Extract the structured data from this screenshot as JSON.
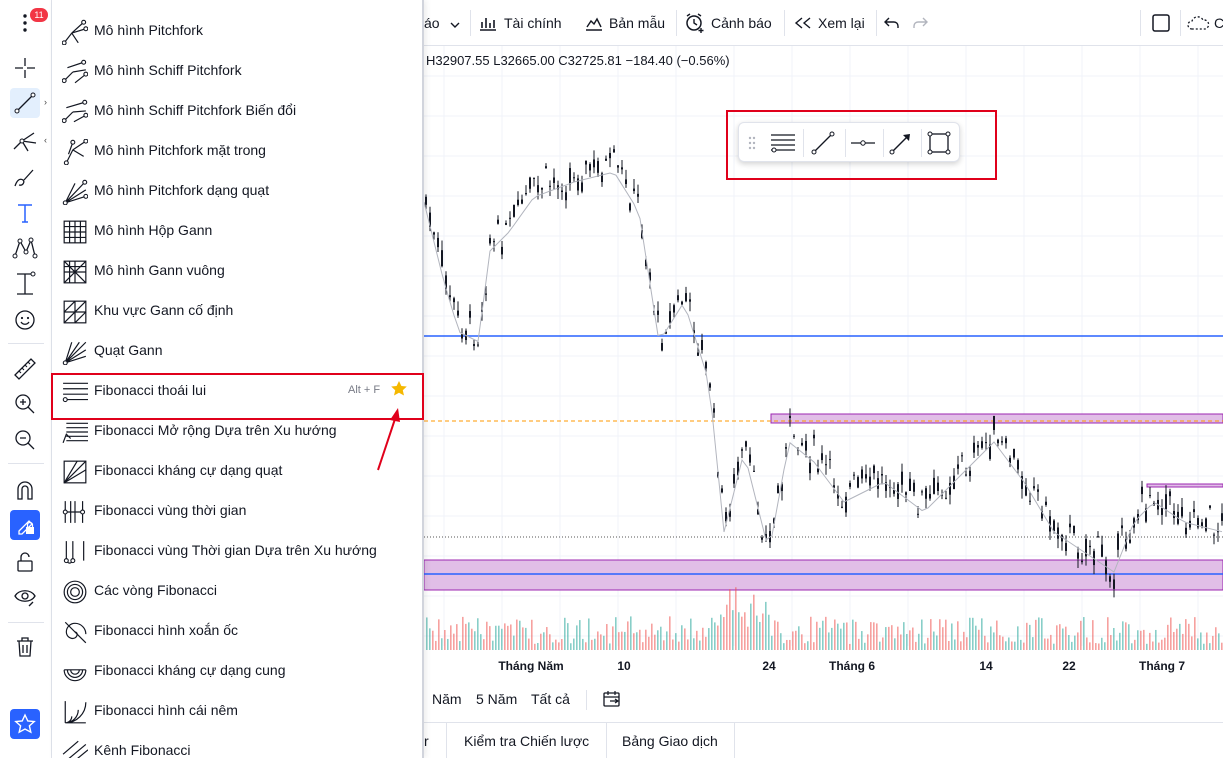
{
  "left_toolbar": {
    "notification_count": "11",
    "tools": [
      {
        "icon": "menu-dots-icon"
      },
      {
        "icon": "crosshair-icon"
      },
      {
        "icon": "trend-line-icon"
      },
      {
        "icon": "pitchfork-icon"
      },
      {
        "icon": "brush-icon"
      },
      {
        "icon": "text-icon"
      },
      {
        "icon": "pattern-icon"
      },
      {
        "icon": "forecast-icon"
      },
      {
        "icon": "emoji-icon"
      },
      {
        "icon": "ruler-icon"
      },
      {
        "icon": "zoom-in-icon"
      },
      {
        "icon": "zoom-out-icon"
      },
      {
        "icon": "magnet-icon"
      },
      {
        "icon": "lock-drawing-icon"
      },
      {
        "icon": "unlock-icon"
      },
      {
        "icon": "eye-icon"
      },
      {
        "icon": "trash-icon"
      },
      {
        "icon": "favorite-star-icon"
      }
    ]
  },
  "menu": {
    "items": [
      {
        "label": "Mô hình Pitchfork",
        "icon": "pitchfork-icon"
      },
      {
        "label": "Mô hình Schiff Pitchfork",
        "icon": "schiff-pitchfork-icon"
      },
      {
        "label": "Mô hình Schiff Pitchfork Biến đổi",
        "icon": "modified-schiff-pitchfork-icon"
      },
      {
        "label": "Mô hình Pitchfork mặt trong",
        "icon": "inside-pitchfork-icon"
      },
      {
        "label": "Mô hình Pitchfork dạng quạt",
        "icon": "pitchfan-icon"
      },
      {
        "label": "Mô hình Hộp Gann",
        "icon": "gann-box-icon"
      },
      {
        "label": "Mô hình Gann vuông",
        "icon": "gann-square-icon"
      },
      {
        "label": "Khu vực Gann cố định",
        "icon": "gann-square-fixed-icon"
      },
      {
        "label": "Quạt Gann",
        "icon": "gann-fan-icon"
      },
      {
        "label": "Fibonacci thoái lui",
        "icon": "fib-retracement-icon",
        "shortcut": "Alt + F",
        "favorite": true
      },
      {
        "label": "Fibonacci Mở rộng Dựa trên Xu hướng",
        "icon": "fib-extension-icon"
      },
      {
        "label": "Fibonacci kháng cự dạng quạt",
        "icon": "fib-speed-fan-icon"
      },
      {
        "label": "Fibonacci vùng thời gian",
        "icon": "fib-time-zone-icon"
      },
      {
        "label": "Fibonacci vùng Thời gian Dựa trên Xu hướng",
        "icon": "fib-trend-time-icon"
      },
      {
        "label": "Các vòng Fibonacci",
        "icon": "fib-circles-icon"
      },
      {
        "label": "Fibonacci hình xoắn ốc",
        "icon": "fib-spiral-icon"
      },
      {
        "label": "Fibonacci kháng cự dạng cung",
        "icon": "fib-arcs-icon"
      },
      {
        "label": "Fibonacci hình cái nêm",
        "icon": "fib-wedge-icon"
      },
      {
        "label": "Kênh Fibonacci",
        "icon": "fib-channel-icon"
      }
    ]
  },
  "top_toolbar": {
    "partial_label": "áo",
    "financials": "Tài chính",
    "templates": "Bản mẫu",
    "alert": "Cảnh báo",
    "replay": "Xem lại",
    "partial_right": "C"
  },
  "ohlc": "H32907.55 L32665.00 C32725.81 −184.40 (−0.56%)",
  "chart": {
    "x_axis_labels": [
      "Tháng Năm",
      "10",
      "24",
      "Tháng 6",
      "14",
      "22",
      "Tháng 7"
    ],
    "colors": {
      "candle": "#131722",
      "hline": "#2962ff",
      "zone_fill": "#e1bee7",
      "zone_border": "#9c27b0",
      "dashed": "#ff9800",
      "volume_up": "#26a69a",
      "volume_down": "#ef5350"
    }
  },
  "floating_toolbar": {
    "tools": [
      "drag-handle-icon",
      "fib-levels-icon",
      "trend-line-icon",
      "horizontal-ray-icon",
      "arrow-line-icon",
      "rectangle-icon"
    ]
  },
  "range_bar": {
    "items": [
      "Năm",
      "5 Năm",
      "Tất cả"
    ]
  },
  "bottom_tabs": {
    "partial": "r",
    "strategy_tester": "Kiểm tra Chiến lược",
    "trading_panel": "Bảng Giao dịch"
  }
}
